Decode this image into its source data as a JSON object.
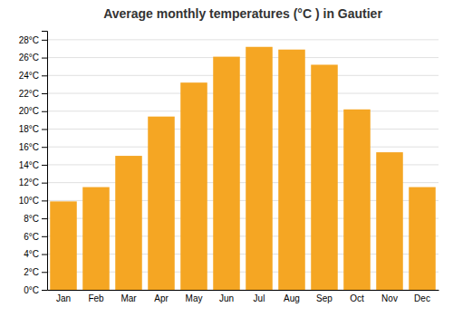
{
  "chart_data": {
    "type": "bar",
    "title": "Average monthly temperatures (°C ) in Gautier",
    "categories": [
      "Jan",
      "Feb",
      "Mar",
      "Apr",
      "May",
      "Jun",
      "Jul",
      "Aug",
      "Sep",
      "Oct",
      "Nov",
      "Dec"
    ],
    "values": [
      9.9,
      11.5,
      15.0,
      19.4,
      23.2,
      26.1,
      27.2,
      26.9,
      25.2,
      20.2,
      15.4,
      11.5
    ],
    "color": "#F5A623",
    "ylim": [
      0,
      29
    ],
    "yticks": [
      {
        "value": 0,
        "label": "0°C"
      },
      {
        "value": 2,
        "label": "2°C"
      },
      {
        "value": 4,
        "label": "4°C"
      },
      {
        "value": 6,
        "label": "6°C"
      },
      {
        "value": 8,
        "label": "8°C"
      },
      {
        "value": 10,
        "label": "10°C"
      },
      {
        "value": 12,
        "label": "12°C"
      },
      {
        "value": 14,
        "label": "14°C"
      },
      {
        "value": 16,
        "label": "16°C"
      },
      {
        "value": 18,
        "label": "18°C"
      },
      {
        "value": 20,
        "label": "20°C"
      },
      {
        "value": 22,
        "label": "22°C"
      },
      {
        "value": 24,
        "label": "24°C"
      },
      {
        "value": 26,
        "label": "26°C"
      },
      {
        "value": 28,
        "label": "28°C"
      }
    ],
    "grid": true
  }
}
